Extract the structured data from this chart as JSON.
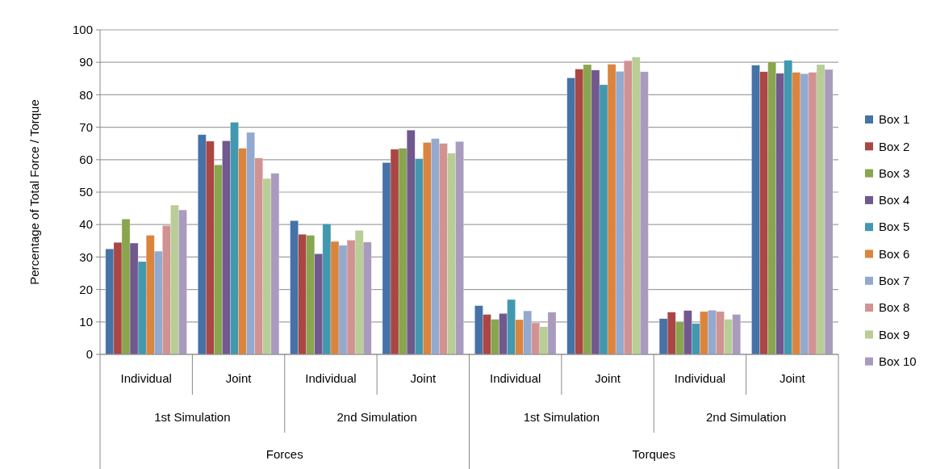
{
  "chart_data": {
    "type": "bar",
    "ylabel": "Percentage of Total Force / Torque",
    "categories": [
      "Individual",
      "Joint",
      "Individual",
      "Joint",
      "Individual",
      "Joint",
      "Individual",
      "Joint"
    ],
    "annotations": [
      "1st Simulation",
      "2nd Simulation",
      "1st Simulation",
      "2nd Simulation",
      "Forces",
      "Torques"
    ],
    "ylim": [
      0,
      100
    ],
    "yticks": [
      0,
      10,
      20,
      30,
      40,
      50,
      60,
      70,
      80,
      90,
      100
    ],
    "grid": "y",
    "legend": "right",
    "series": [
      {
        "name": "Box 1",
        "color": "#4572a7",
        "values": [
          32.5,
          67.7,
          41.2,
          59.1,
          15,
          85.2,
          11,
          89.1
        ]
      },
      {
        "name": "Box 2",
        "color": "#aa4643",
        "values": [
          34.5,
          65.7,
          37,
          63.2,
          12.3,
          87.9,
          13,
          87.1
        ]
      },
      {
        "name": "Box 3",
        "color": "#89a54e",
        "values": [
          41.7,
          58.4,
          36.7,
          63.5,
          10.8,
          89.3,
          10,
          90.1
        ]
      },
      {
        "name": "Box 4",
        "color": "#71588f",
        "values": [
          34.3,
          65.8,
          31,
          69.1,
          12.6,
          87.6,
          13.5,
          86.6
        ]
      },
      {
        "name": "Box 5",
        "color": "#4198af",
        "values": [
          28.6,
          71.5,
          40.2,
          60.3,
          16.9,
          83.1,
          9.5,
          90.6
        ]
      },
      {
        "name": "Box 6",
        "color": "#db843d",
        "values": [
          36.7,
          63.5,
          34.8,
          65.3,
          10.7,
          89.4,
          13.2,
          86.9
        ]
      },
      {
        "name": "Box 7",
        "color": "#93a9cf",
        "values": [
          31.8,
          68.4,
          33.6,
          66.5,
          13.4,
          87.2,
          13.6,
          86.5
        ]
      },
      {
        "name": "Box 8",
        "color": "#d19392",
        "values": [
          39.7,
          60.5,
          35.2,
          65,
          9.7,
          90.5,
          13.2,
          86.9
        ]
      },
      {
        "name": "Box 9",
        "color": "#b9cd96",
        "values": [
          46,
          54.2,
          38.2,
          62,
          8.5,
          91.6,
          10.8,
          89.3
        ]
      },
      {
        "name": "Box 10",
        "color": "#a99bbd",
        "values": [
          44.5,
          55.8,
          34.6,
          65.6,
          13,
          87.1,
          12.3,
          87.8
        ]
      }
    ]
  }
}
